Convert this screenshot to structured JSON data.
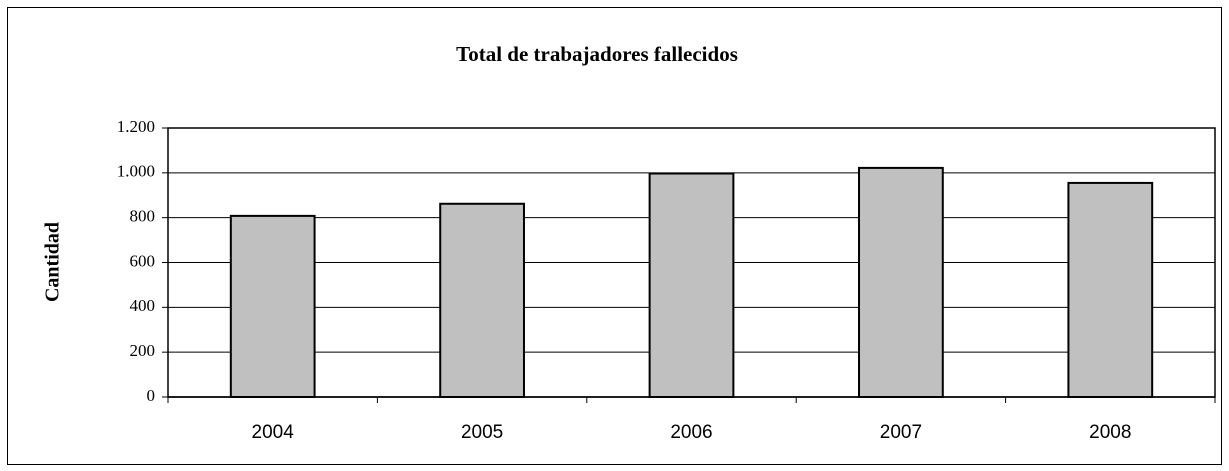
{
  "chart_data": {
    "type": "bar",
    "title": "Total de trabajadores fallecidos",
    "y_label": "Cantidad",
    "categories": [
      "2004",
      "2005",
      "2006",
      "2007",
      "2008"
    ],
    "values": [
      808,
      862,
      997,
      1022,
      955
    ],
    "color": "#c0c0c0",
    "ylim": [
      0,
      1200
    ],
    "yticks": [
      0,
      200,
      400,
      600,
      800,
      {
        "value": 1000,
        "label": "1.000"
      },
      {
        "value": 1200,
        "label": "1.200"
      }
    ],
    "grid": true
  }
}
